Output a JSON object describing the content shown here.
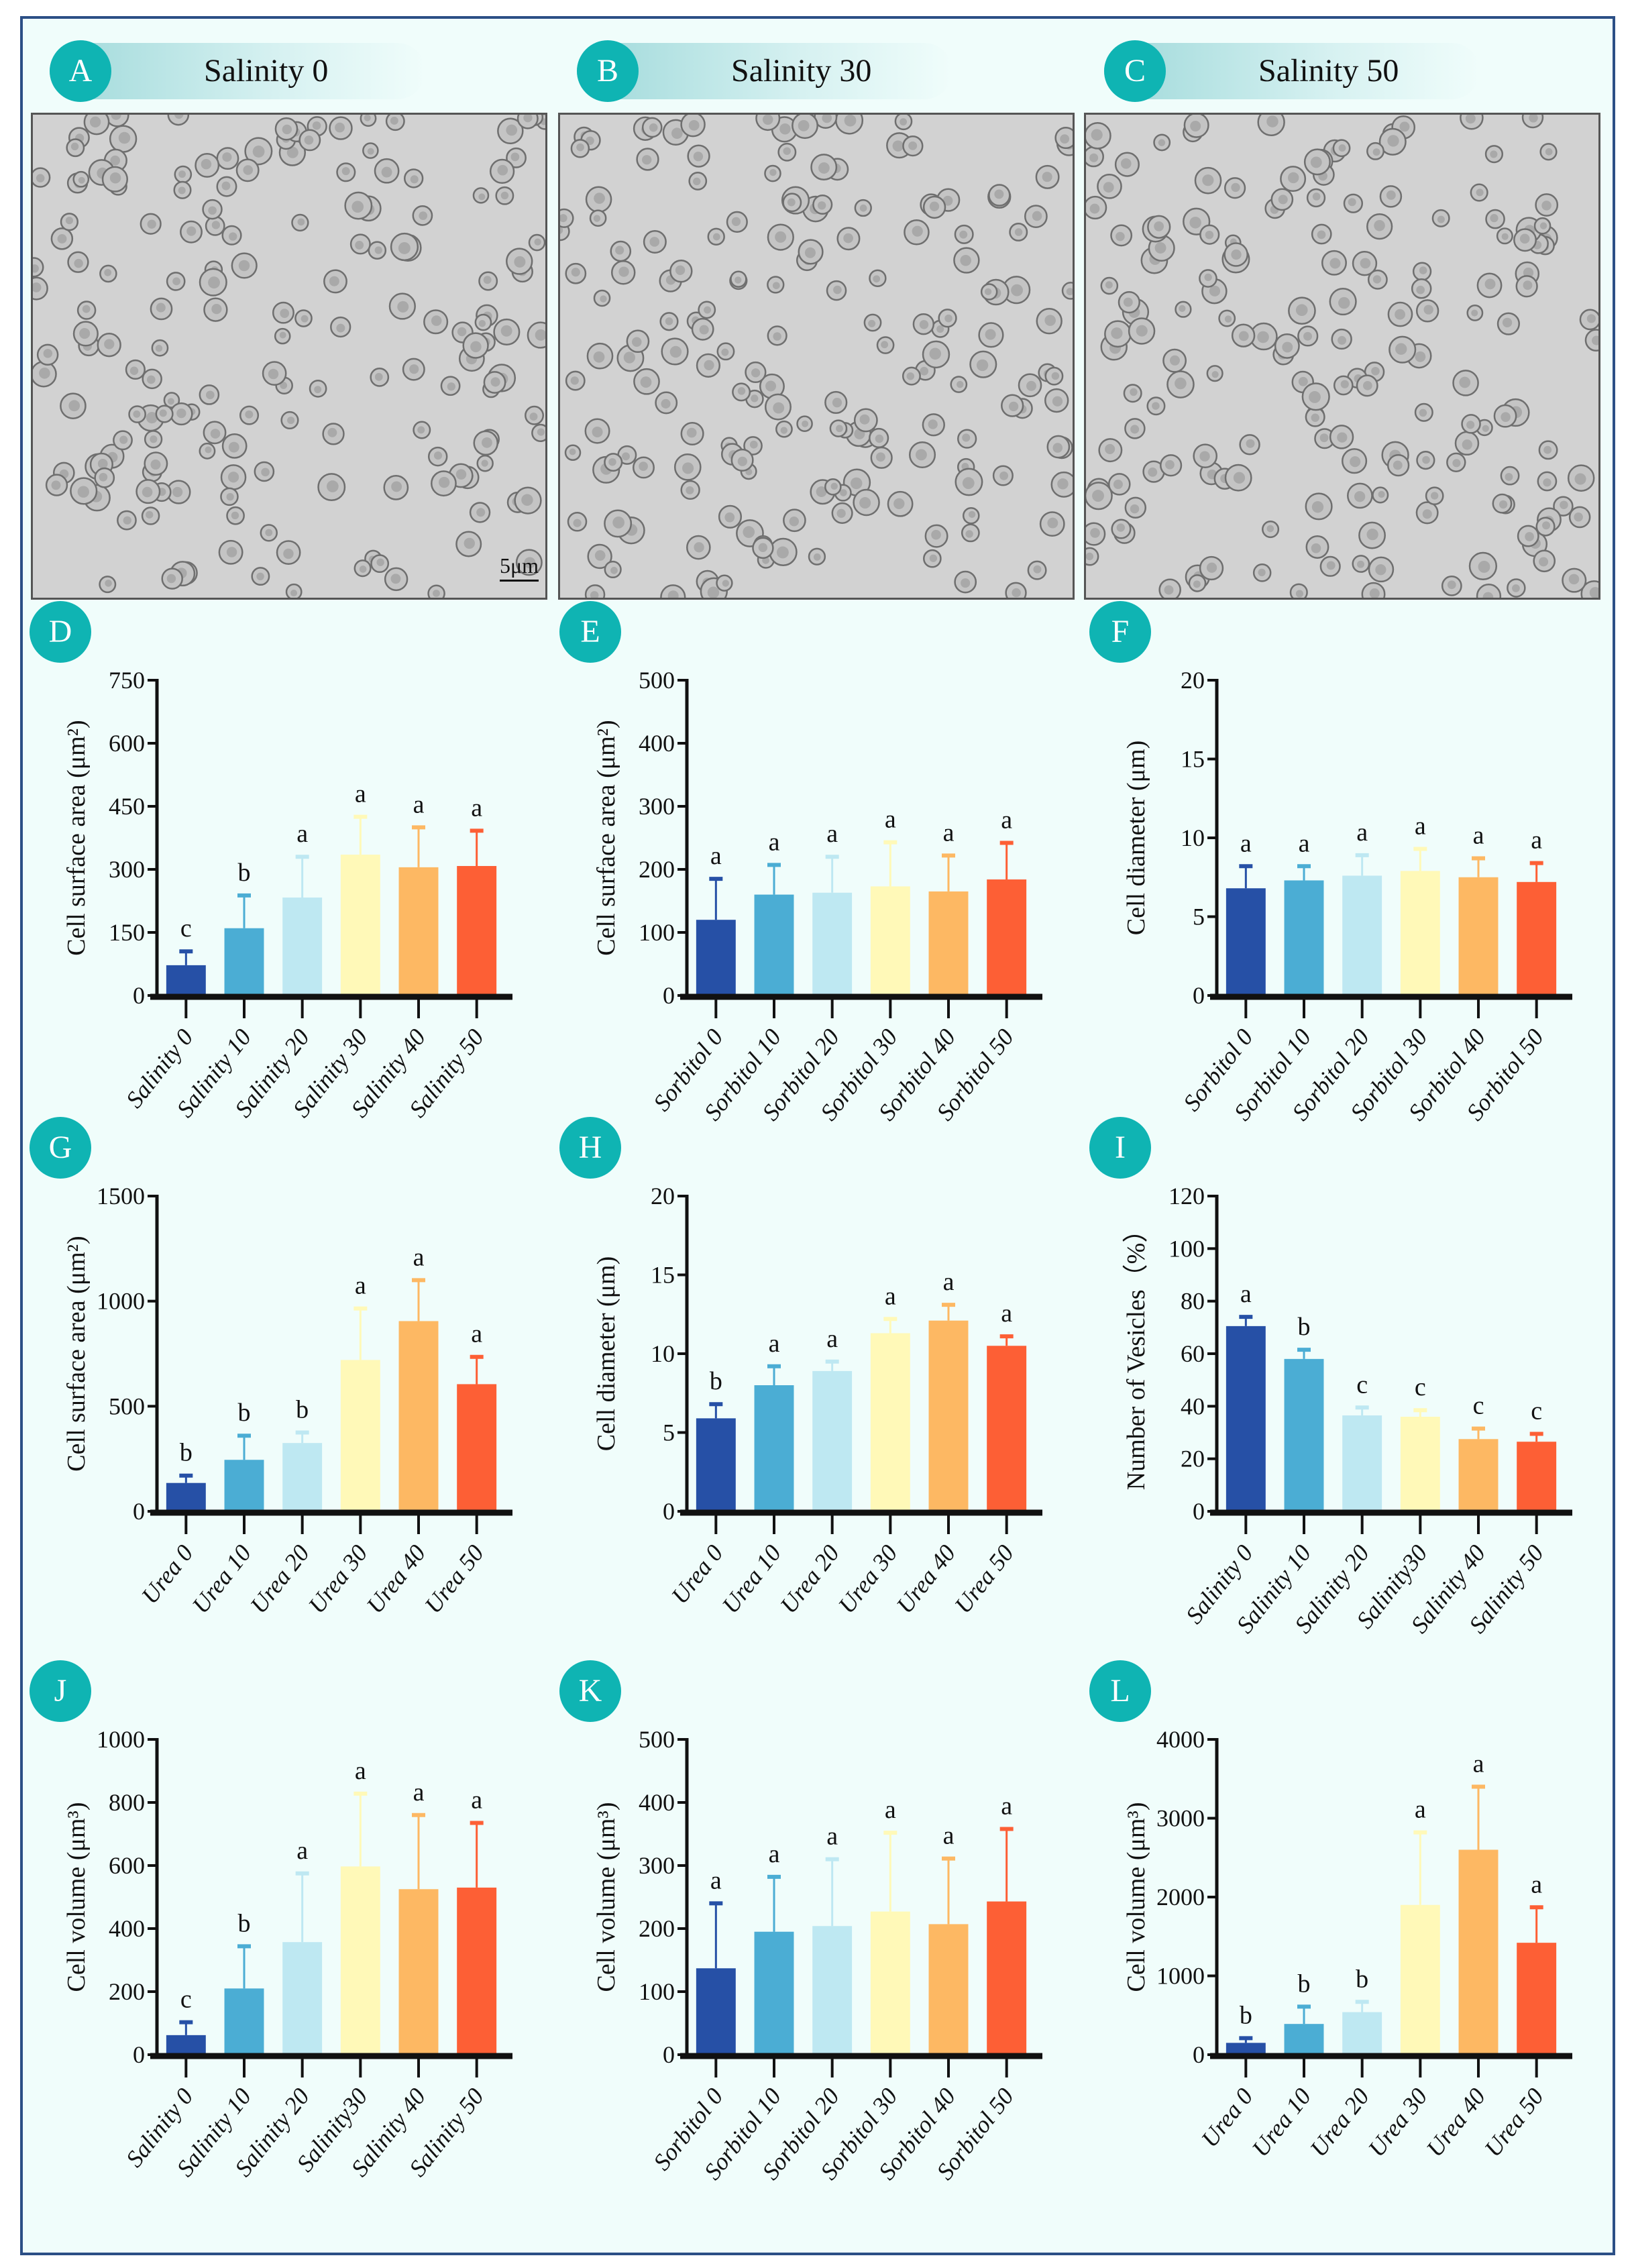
{
  "images": [
    {
      "badge": "A",
      "title": "Salinity 0",
      "scale_bar": "5μm"
    },
    {
      "badge": "B",
      "title": "Salinity 30"
    },
    {
      "badge": "C",
      "title": "Salinity 50"
    }
  ],
  "colors": [
    "#2650a6",
    "#4badd4",
    "#bee8f2",
    "#fff9b8",
    "#fdb863",
    "#fd5f35"
  ],
  "chart_data": [
    {
      "panel": "D",
      "type": "bar",
      "ylabel": "Cell surface area (μm²)",
      "ylim": [
        0,
        750
      ],
      "ticks": [
        0,
        150,
        300,
        450,
        600,
        750
      ],
      "categories": [
        "Salinity 0",
        "Salinity 10",
        "Salinity 20",
        "Salinity 30",
        "Salinity 40",
        "Salinity 50"
      ],
      "values": [
        72,
        160,
        233,
        335,
        305,
        308
      ],
      "error_upper": [
        105,
        238,
        330,
        425,
        400,
        392
      ],
      "letters": [
        "c",
        "b",
        "a",
        "a",
        "a",
        "a"
      ]
    },
    {
      "panel": "E",
      "type": "bar",
      "ylabel": "Cell surface area (μm²)",
      "ylim": [
        0,
        500
      ],
      "ticks": [
        0,
        100,
        200,
        300,
        400,
        500
      ],
      "categories": [
        "Sorbitol 0",
        "Sorbitol 10",
        "Sorbitol 20",
        "Sorbitol 30",
        "Sorbitol 40",
        "Sorbitol 50"
      ],
      "values": [
        120,
        160,
        163,
        173,
        165,
        184
      ],
      "error_upper": [
        185,
        207,
        220,
        243,
        222,
        242
      ],
      "letters": [
        "a",
        "a",
        "a",
        "a",
        "a",
        "a"
      ]
    },
    {
      "panel": "F",
      "type": "bar",
      "ylabel": "Cell diameter (μm)",
      "ylim": [
        0,
        20
      ],
      "ticks": [
        0,
        5,
        10,
        15,
        20
      ],
      "categories": [
        "Sorbitol 0",
        "Sorbitol 10",
        "Sorbitol 20",
        "Sorbitol 30",
        "Sorbitol 40",
        "Sorbitol 50"
      ],
      "values": [
        6.8,
        7.3,
        7.6,
        7.9,
        7.5,
        7.2
      ],
      "error_upper": [
        8.2,
        8.2,
        8.9,
        9.3,
        8.7,
        8.4
      ],
      "letters": [
        "a",
        "a",
        "a",
        "a",
        "a",
        "a"
      ]
    },
    {
      "panel": "G",
      "type": "bar",
      "ylabel": "Cell surface area (μm²)",
      "ylim": [
        0,
        1500
      ],
      "ticks": [
        0,
        500,
        1000,
        1500
      ],
      "categories": [
        "Urea 0",
        "Urea 10",
        "Urea 20",
        "Urea 30",
        "Urea 40",
        "Urea 50"
      ],
      "values": [
        135,
        245,
        325,
        720,
        905,
        605
      ],
      "error_upper": [
        170,
        360,
        375,
        965,
        1100,
        735
      ],
      "letters": [
        "b",
        "b",
        "b",
        "a",
        "a",
        "a"
      ]
    },
    {
      "panel": "H",
      "type": "bar",
      "ylabel": "Cell diameter (μm)",
      "ylim": [
        0,
        20
      ],
      "ticks": [
        0,
        5,
        10,
        15,
        20
      ],
      "categories": [
        "Urea 0",
        "Urea 10",
        "Urea 20",
        "Urea 30",
        "Urea 40",
        "Urea 50"
      ],
      "values": [
        5.9,
        8.0,
        8.9,
        11.3,
        12.1,
        10.5
      ],
      "error_upper": [
        6.8,
        9.2,
        9.5,
        12.2,
        13.1,
        11.1
      ],
      "letters": [
        "b",
        "a",
        "a",
        "a",
        "a",
        "a"
      ]
    },
    {
      "panel": "I",
      "type": "bar",
      "ylabel": "Number of Vesicles（%）",
      "ylim": [
        0,
        120
      ],
      "ticks": [
        0,
        20,
        40,
        60,
        80,
        100,
        120
      ],
      "categories": [
        "Salinity 0",
        "Salinity 10",
        "Salinity 20",
        "Salinity30",
        "Salinity 40",
        "Salinity 50"
      ],
      "values": [
        70.5,
        58,
        36.5,
        36,
        27.5,
        26.5
      ],
      "error_upper": [
        74,
        61.5,
        39.5,
        38.5,
        31.5,
        29.5
      ],
      "letters": [
        "a",
        "b",
        "c",
        "c",
        "c",
        "c"
      ]
    },
    {
      "panel": "J",
      "type": "bar",
      "ylabel": "Cell volume (μm³)",
      "ylim": [
        0,
        1000
      ],
      "ticks": [
        0,
        200,
        400,
        600,
        800,
        1000
      ],
      "categories": [
        "Salinity 0",
        "Salinity 10",
        "Salinity 20",
        "Salinity30",
        "Salinity 40",
        "Salinity 50"
      ],
      "values": [
        62,
        210,
        357,
        597,
        525,
        530
      ],
      "error_upper": [
        103,
        344,
        575,
        828,
        760,
        735
      ],
      "letters": [
        "c",
        "b",
        "a",
        "a",
        "a",
        "a"
      ]
    },
    {
      "panel": "K",
      "type": "bar",
      "ylabel": "Cell volume (μm³)",
      "ylim": [
        0,
        500
      ],
      "ticks": [
        0,
        100,
        200,
        300,
        400,
        500
      ],
      "categories": [
        "Sorbitol 0",
        "Sorbitol 10",
        "Sorbitol 20",
        "Sorbitol 30",
        "Sorbitol 40",
        "Sorbitol 50"
      ],
      "values": [
        137,
        195,
        204,
        227,
        207,
        243
      ],
      "error_upper": [
        240,
        282,
        310,
        352,
        311,
        358
      ],
      "letters": [
        "a",
        "a",
        "a",
        "a",
        "a",
        "a"
      ]
    },
    {
      "panel": "L",
      "type": "bar",
      "ylabel": "Cell volume (μm³)",
      "ylim": [
        0,
        4000
      ],
      "ticks": [
        0,
        1000,
        2000,
        3000,
        4000
      ],
      "categories": [
        "Urea 0",
        "Urea 10",
        "Urea 20",
        "Urea 30",
        "Urea 40",
        "Urea 50"
      ],
      "values": [
        150,
        390,
        540,
        1900,
        2600,
        1420
      ],
      "error_upper": [
        210,
        610,
        670,
        2820,
        3400,
        1870
      ],
      "letters": [
        "b",
        "b",
        "b",
        "a",
        "a",
        "a"
      ]
    }
  ]
}
